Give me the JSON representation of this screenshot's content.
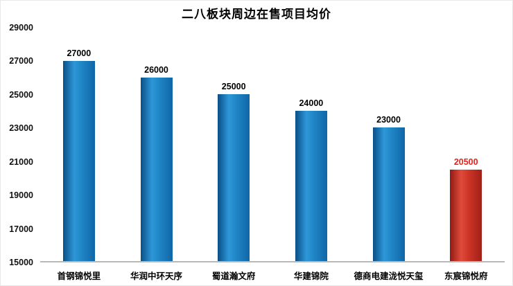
{
  "chart_data": {
    "type": "bar",
    "title": "二八板块周边在售项目均价",
    "categories": [
      "首钢锦悦里",
      "华润中环天序",
      "蜀道瀚文府",
      "华建锦院",
      "德商电建泷悦天玺",
      "东宸锦悦府"
    ],
    "values": [
      27000,
      26000,
      25000,
      24000,
      23000,
      20500
    ],
    "bar_colors": [
      "blue",
      "blue",
      "blue",
      "blue",
      "blue",
      "red"
    ],
    "xlabel": "",
    "ylabel": "",
    "ylim": [
      15000,
      29000
    ],
    "yticks": [
      15000,
      17000,
      19000,
      21000,
      23000,
      25000,
      27000,
      29000
    ],
    "grid": false,
    "legend_position": "none",
    "colors": {
      "bar_blue_dark": "#0a4f86",
      "bar_blue_light": "#2e97d8",
      "bar_red_dark": "#8f1a14",
      "bar_red_light": "#e04b3a",
      "value_label": "#000000",
      "highlight_value_label": "#e8201a",
      "axis_line": "#b8b8b8",
      "background": "#ffffff"
    }
  }
}
